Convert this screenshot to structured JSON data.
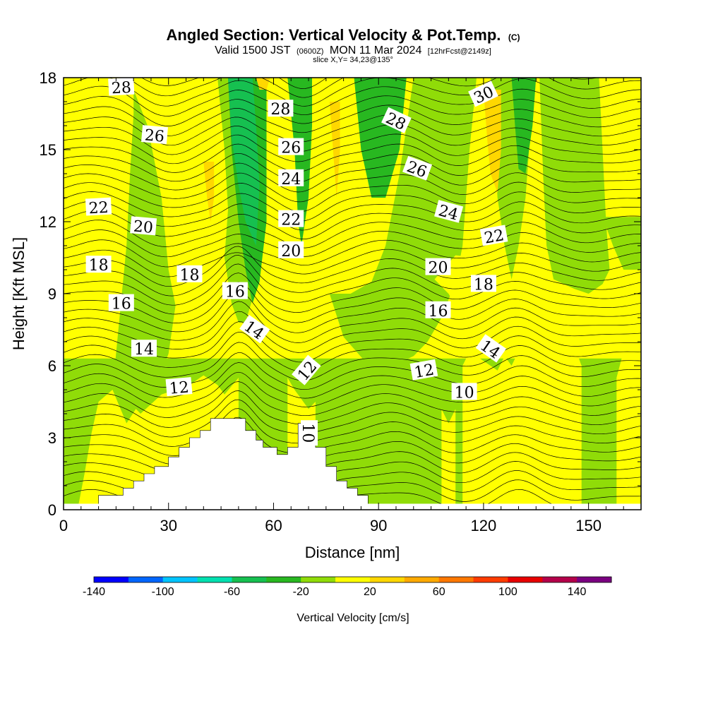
{
  "title": {
    "main": "Angled Section: Vertical Velocity & Pot.Temp.",
    "copyright": "(C)",
    "valid_prefix": "Valid 1500 JST",
    "valid_utc": "(0600Z)",
    "valid_date": "MON 11 Mar 2024",
    "forecast": "[12hrFcst@2149z]",
    "slice": "slice X,Y= 34,23@135°"
  },
  "chart_data": {
    "type": "heatmap",
    "xlabel": "Distance [nm]",
    "ylabel": "Height [Kft MSL]",
    "xlim": [
      0,
      165
    ],
    "ylim": [
      0,
      18
    ],
    "xticks": [
      0,
      30,
      60,
      90,
      120,
      150
    ],
    "yticks": [
      0,
      3,
      6,
      9,
      12,
      15,
      18
    ],
    "colorbar": {
      "title": "Vertical Velocity [cm/s]",
      "min": -140,
      "max": 160,
      "step": 20,
      "tick_labels": [
        -140,
        -100,
        -60,
        -20,
        20,
        60,
        100,
        140
      ],
      "colors": [
        "#0000ff",
        "#0066ff",
        "#00c4ff",
        "#00e0b0",
        "#16c050",
        "#28b820",
        "#90dc08",
        "#ffff00",
        "#ffd700",
        "#ffaa00",
        "#ff7800",
        "#ff3c00",
        "#e80000",
        "#b4004a",
        "#7a0080"
      ]
    },
    "velocity_bands": [
      {
        "type": "base",
        "value": 0
      },
      {
        "type": "rect",
        "x0": 0,
        "x1": 165,
        "y0": 0,
        "y1": 6.3,
        "value": -10
      },
      {
        "type": "poly",
        "pts": [
          [
            0,
            0
          ],
          [
            4,
            0
          ],
          [
            6,
            1.5
          ],
          [
            8,
            3.2
          ],
          [
            10,
            4.5
          ],
          [
            14,
            5
          ],
          [
            18,
            4.6
          ],
          [
            22,
            4
          ],
          [
            28,
            4.8
          ],
          [
            36,
            5.2
          ],
          [
            40,
            5.6
          ],
          [
            44,
            5.2
          ],
          [
            46,
            4.8
          ],
          [
            50,
            5.5
          ],
          [
            50,
            0
          ]
        ],
        "value": 10
      },
      {
        "type": "poly",
        "pts": [
          [
            20,
            17.5
          ],
          [
            24,
            16
          ],
          [
            28,
            13
          ],
          [
            30,
            10
          ],
          [
            32,
            8.5
          ],
          [
            30,
            6.5
          ],
          [
            26,
            5
          ],
          [
            22,
            4.5
          ],
          [
            18,
            3.6
          ],
          [
            14,
            5
          ],
          [
            16,
            8
          ],
          [
            18,
            11
          ],
          [
            19,
            14
          ],
          [
            20,
            16.5
          ]
        ],
        "value": -10
      },
      {
        "type": "poly",
        "pts": [
          [
            44,
            18
          ],
          [
            46,
            15
          ],
          [
            47,
            12.5
          ],
          [
            46,
            10.5
          ],
          [
            48,
            8.6
          ],
          [
            50,
            7.8
          ],
          [
            52,
            7.8
          ],
          [
            54,
            8.8
          ],
          [
            56,
            11
          ],
          [
            57,
            13.5
          ],
          [
            58,
            16
          ],
          [
            58,
            18
          ]
        ],
        "value": -10
      },
      {
        "type": "poly",
        "pts": [
          [
            47,
            18
          ],
          [
            48,
            15
          ],
          [
            50,
            12
          ],
          [
            52,
            10
          ],
          [
            54,
            8.6
          ],
          [
            56,
            9.5
          ],
          [
            58,
            12
          ],
          [
            58,
            15
          ],
          [
            58,
            18
          ]
        ],
        "value": -30
      },
      {
        "type": "poly",
        "pts": [
          [
            47,
            18
          ],
          [
            48,
            15.5
          ],
          [
            50,
            13.5
          ],
          [
            52,
            12
          ],
          [
            55,
            11
          ],
          [
            56,
            13.5
          ],
          [
            55,
            16
          ],
          [
            54,
            18
          ]
        ],
        "value": -50
      },
      {
        "type": "poly",
        "pts": [
          [
            64,
            18
          ],
          [
            66,
            15
          ],
          [
            67,
            12
          ],
          [
            68,
            11
          ],
          [
            70,
            13
          ],
          [
            71,
            16
          ],
          [
            71,
            18
          ]
        ],
        "value": -30
      },
      {
        "type": "poly",
        "pts": [
          [
            72,
            18
          ],
          [
            73,
            15
          ],
          [
            74,
            12
          ],
          [
            76,
            10
          ],
          [
            78,
            11
          ],
          [
            80,
            14
          ],
          [
            82,
            18
          ]
        ],
        "value": 10
      },
      {
        "type": "poly",
        "pts": [
          [
            83,
            18
          ],
          [
            85,
            15
          ],
          [
            88,
            13
          ],
          [
            92,
            13
          ],
          [
            96,
            15
          ],
          [
            98,
            18
          ]
        ],
        "value": -30
      },
      {
        "type": "poly",
        "pts": [
          [
            76,
            9
          ],
          [
            80,
            7.2
          ],
          [
            86,
            6.2
          ],
          [
            94,
            6
          ],
          [
            100,
            6.4
          ],
          [
            104,
            7
          ],
          [
            108,
            8
          ],
          [
            112,
            9.5
          ],
          [
            114,
            11
          ],
          [
            115,
            13
          ],
          [
            116,
            15
          ],
          [
            118,
            18
          ],
          [
            100,
            18
          ],
          [
            96,
            14
          ],
          [
            92,
            11
          ],
          [
            88,
            9.5
          ],
          [
            82,
            9
          ]
        ],
        "value": -10
      },
      {
        "type": "poly",
        "pts": [
          [
            106,
            9.6
          ],
          [
            110,
            9
          ],
          [
            114,
            8
          ],
          [
            118,
            7
          ],
          [
            122,
            6.8
          ],
          [
            124,
            7.5
          ],
          [
            122,
            9
          ],
          [
            118,
            10.5
          ],
          [
            112,
            10.6
          ]
        ],
        "value": 10
      },
      {
        "type": "poly",
        "pts": [
          [
            122,
            18
          ],
          [
            123,
            15
          ],
          [
            124,
            13
          ],
          [
            126,
            11
          ],
          [
            128,
            9.6
          ],
          [
            130,
            11
          ],
          [
            132,
            13
          ],
          [
            133,
            15
          ],
          [
            134,
            18
          ]
        ],
        "value": -10
      },
      {
        "type": "poly",
        "pts": [
          [
            128,
            18
          ],
          [
            129,
            16
          ],
          [
            130,
            14.2
          ],
          [
            132,
            14
          ],
          [
            134,
            16
          ],
          [
            135,
            18
          ]
        ],
        "value": -30
      },
      {
        "type": "poly",
        "pts": [
          [
            120,
            17.5
          ],
          [
            121,
            15.5
          ],
          [
            122,
            14
          ],
          [
            124,
            13.2
          ],
          [
            125,
            15
          ],
          [
            125,
            17.5
          ]
        ],
        "value": 30
      },
      {
        "type": "poly",
        "pts": [
          [
            40,
            14.5
          ],
          [
            41,
            13
          ],
          [
            42,
            12
          ],
          [
            43,
            13
          ],
          [
            43,
            14.5
          ]
        ],
        "value": 30
      },
      {
        "type": "poly",
        "pts": [
          [
            76,
            17
          ],
          [
            77,
            15
          ],
          [
            78,
            13
          ],
          [
            79,
            15
          ],
          [
            79,
            17
          ]
        ],
        "value": 30
      },
      {
        "type": "poly",
        "pts": [
          [
            55,
            18
          ],
          [
            56,
            17.5
          ],
          [
            58,
            17.5
          ],
          [
            59,
            18
          ]
        ],
        "value": 30
      },
      {
        "type": "poly",
        "pts": [
          [
            136,
            18
          ],
          [
            137,
            14
          ],
          [
            138,
            11
          ],
          [
            140,
            9.6
          ],
          [
            146,
            9.2
          ],
          [
            150,
            9
          ],
          [
            154,
            9.4
          ],
          [
            156,
            10
          ],
          [
            155,
            12
          ],
          [
            154,
            15
          ],
          [
            153,
            18
          ]
        ],
        "value": -10
      },
      {
        "type": "poly",
        "pts": [
          [
            154,
            12.2
          ],
          [
            157,
            11
          ],
          [
            160,
            10
          ],
          [
            165,
            10
          ],
          [
            165,
            12.2
          ]
        ],
        "value": -10
      },
      {
        "type": "poly",
        "pts": [
          [
            114,
            6
          ],
          [
            116,
            6.6
          ],
          [
            120,
            6.2
          ],
          [
            124,
            5.8
          ],
          [
            126,
            6.4
          ],
          [
            128,
            6
          ],
          [
            130,
            6.6
          ],
          [
            132,
            7.2
          ],
          [
            134,
            7
          ],
          [
            136,
            7.6
          ],
          [
            138,
            8
          ],
          [
            142,
            8
          ],
          [
            144,
            7.6
          ],
          [
            146,
            6.8
          ],
          [
            148,
            6
          ],
          [
            148,
            0
          ],
          [
            114,
            0
          ]
        ],
        "value": 10
      },
      {
        "type": "poly",
        "pts": [
          [
            158,
            5.5
          ],
          [
            160,
            6.6
          ],
          [
            162,
            7.2
          ],
          [
            165,
            7.6
          ],
          [
            165,
            0
          ],
          [
            158,
            0
          ]
        ],
        "value": 10
      },
      {
        "type": "poly",
        "pts": [
          [
            82,
            6.3
          ],
          [
            88,
            5.6
          ],
          [
            94,
            5.4
          ],
          [
            100,
            5.6
          ],
          [
            106,
            5.9
          ],
          [
            112,
            6
          ],
          [
            114,
            6
          ],
          [
            112,
            0
          ],
          [
            82,
            0
          ]
        ],
        "value": -10
      },
      {
        "type": "poly",
        "pts": [
          [
            108,
            4.2
          ],
          [
            110,
            3.6
          ],
          [
            112,
            4.2
          ],
          [
            112,
            0
          ],
          [
            108,
            0
          ]
        ],
        "value": 10
      },
      {
        "type": "poly",
        "pts": [
          [
            64,
            5.5
          ],
          [
            66,
            5
          ],
          [
            68,
            4.6
          ],
          [
            70,
            4.2
          ],
          [
            72,
            4.5
          ],
          [
            72,
            0
          ],
          [
            64,
            0
          ]
        ],
        "value": 10
      }
    ],
    "terrain": [
      [
        10,
        0.3
      ],
      [
        10,
        0.6
      ],
      [
        17,
        0.6
      ],
      [
        17,
        0.9
      ],
      [
        20,
        0.9
      ],
      [
        20,
        1.2
      ],
      [
        23,
        1.2
      ],
      [
        23,
        1.5
      ],
      [
        26,
        1.5
      ],
      [
        26,
        1.8
      ],
      [
        30,
        1.8
      ],
      [
        30,
        2.2
      ],
      [
        33,
        2.2
      ],
      [
        33,
        2.6
      ],
      [
        36,
        2.6
      ],
      [
        36,
        3
      ],
      [
        39,
        3
      ],
      [
        39,
        3.3
      ],
      [
        42,
        3.3
      ],
      [
        42,
        3.8
      ],
      [
        52,
        3.8
      ],
      [
        52,
        3.3
      ],
      [
        55,
        3.3
      ],
      [
        55,
        2.9
      ],
      [
        57,
        2.9
      ],
      [
        57,
        2.6
      ],
      [
        61,
        2.6
      ],
      [
        61,
        2.3
      ],
      [
        64,
        2.3
      ],
      [
        64,
        2.6
      ],
      [
        67,
        2.6
      ],
      [
        67,
        3.6
      ],
      [
        72,
        3.6
      ],
      [
        72,
        2.6
      ],
      [
        75,
        2.6
      ],
      [
        75,
        1.8
      ],
      [
        78,
        1.8
      ],
      [
        78,
        1.2
      ],
      [
        81,
        1.2
      ],
      [
        81,
        0.9
      ],
      [
        84,
        0.9
      ],
      [
        84,
        0.6
      ],
      [
        87,
        0.6
      ],
      [
        87,
        0.3
      ]
    ],
    "isentropes": [
      {
        "value": 10,
        "y": 3.6
      },
      {
        "value": 12,
        "y": 5.2
      },
      {
        "value": 14,
        "y": 6.9
      },
      {
        "value": 16,
        "y": 8.6
      },
      {
        "value": 18,
        "y": 10.3
      },
      {
        "value": 20,
        "y": 11.7
      },
      {
        "value": 22,
        "y": 12.9
      },
      {
        "value": 24,
        "y": 13.9
      },
      {
        "value": 26,
        "y": 15.2
      },
      {
        "value": 28,
        "y": 16.4
      },
      {
        "value": 30,
        "y": 17.6
      }
    ],
    "contour_labels": [
      {
        "text": "28",
        "x": 16.5,
        "y": 17.6,
        "rot": -3
      },
      {
        "text": "26",
        "x": 26.0,
        "y": 15.6,
        "rot": 5
      },
      {
        "text": "22",
        "x": 10.0,
        "y": 12.6,
        "rot": -3
      },
      {
        "text": "20",
        "x": 22.8,
        "y": 11.8,
        "rot": 5
      },
      {
        "text": "18",
        "x": 10.0,
        "y": 10.2,
        "rot": 0
      },
      {
        "text": "18",
        "x": 36.0,
        "y": 9.8,
        "rot": 0
      },
      {
        "text": "16",
        "x": 16.5,
        "y": 8.6,
        "rot": 0
      },
      {
        "text": "16",
        "x": 49.0,
        "y": 9.1,
        "rot": 0
      },
      {
        "text": "14",
        "x": 23.0,
        "y": 6.7,
        "rot": 0
      },
      {
        "text": "12",
        "x": 33.0,
        "y": 5.1,
        "rot": -5
      },
      {
        "text": "28",
        "x": 62.0,
        "y": 16.7,
        "rot": 0
      },
      {
        "text": "26",
        "x": 65.0,
        "y": 15.1,
        "rot": 0
      },
      {
        "text": "24",
        "x": 65.0,
        "y": 13.8,
        "rot": 0
      },
      {
        "text": "22",
        "x": 65.0,
        "y": 12.1,
        "rot": 0
      },
      {
        "text": "20",
        "x": 65.0,
        "y": 10.8,
        "rot": 0
      },
      {
        "text": "14",
        "x": 54.5,
        "y": 7.5,
        "rot": 35
      },
      {
        "text": "12",
        "x": 69.5,
        "y": 5.8,
        "rot": -50
      },
      {
        "text": "10",
        "x": 70.0,
        "y": 3.2,
        "rot": 90
      },
      {
        "text": "28",
        "x": 95.0,
        "y": 16.2,
        "rot": 25
      },
      {
        "text": "26",
        "x": 101.0,
        "y": 14.2,
        "rot": 20
      },
      {
        "text": "24",
        "x": 110.0,
        "y": 12.4,
        "rot": 15
      },
      {
        "text": "22",
        "x": 123.0,
        "y": 11.4,
        "rot": -10
      },
      {
        "text": "20",
        "x": 107.0,
        "y": 10.1,
        "rot": 0
      },
      {
        "text": "18",
        "x": 120.0,
        "y": 9.4,
        "rot": 0
      },
      {
        "text": "16",
        "x": 107.0,
        "y": 8.3,
        "rot": 0
      },
      {
        "text": "12",
        "x": 103.0,
        "y": 5.8,
        "rot": -10
      },
      {
        "text": "10",
        "x": 114.5,
        "y": 4.9,
        "rot": 0
      },
      {
        "text": "14",
        "x": 122.0,
        "y": 6.7,
        "rot": 35
      },
      {
        "text": "30",
        "x": 120.0,
        "y": 17.3,
        "rot": -25
      }
    ]
  }
}
